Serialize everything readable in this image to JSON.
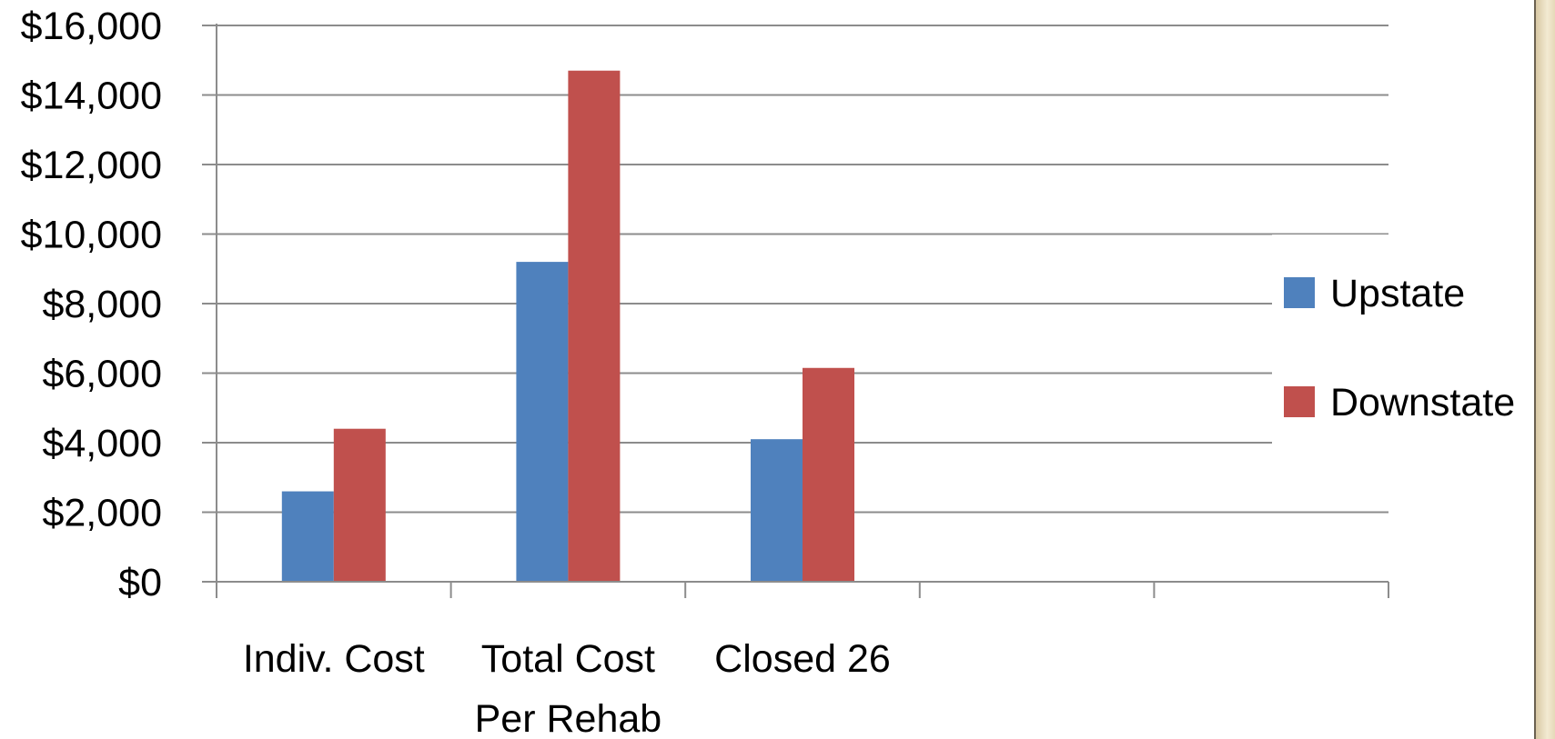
{
  "chart_data": {
    "type": "bar",
    "categories": [
      "Indiv. Cost",
      "Total Cost Per Rehab",
      "Closed 26",
      "",
      ""
    ],
    "category_lines": [
      [
        "Indiv. Cost"
      ],
      [
        "Total Cost",
        "Per Rehab"
      ],
      [
        "Closed 26"
      ],
      [],
      []
    ],
    "series": [
      {
        "name": "Upstate",
        "color": "#4f81bd",
        "values": [
          2600,
          9200,
          4100,
          null,
          null
        ]
      },
      {
        "name": "Downstate",
        "color": "#c0504d",
        "values": [
          4400,
          14700,
          6150,
          null,
          null
        ]
      }
    ],
    "ylim": [
      0,
      16000
    ],
    "yticks": [
      0,
      2000,
      4000,
      6000,
      8000,
      10000,
      12000,
      14000,
      16000
    ],
    "ytick_labels": [
      "$0",
      "$2,000",
      "$4,000",
      "$6,000",
      "$8,000",
      "$10,000",
      "$12,000",
      "$14,000",
      "$16,000"
    ],
    "grid": true,
    "legend_position": "right",
    "title": "",
    "xlabel": "",
    "ylabel": ""
  }
}
